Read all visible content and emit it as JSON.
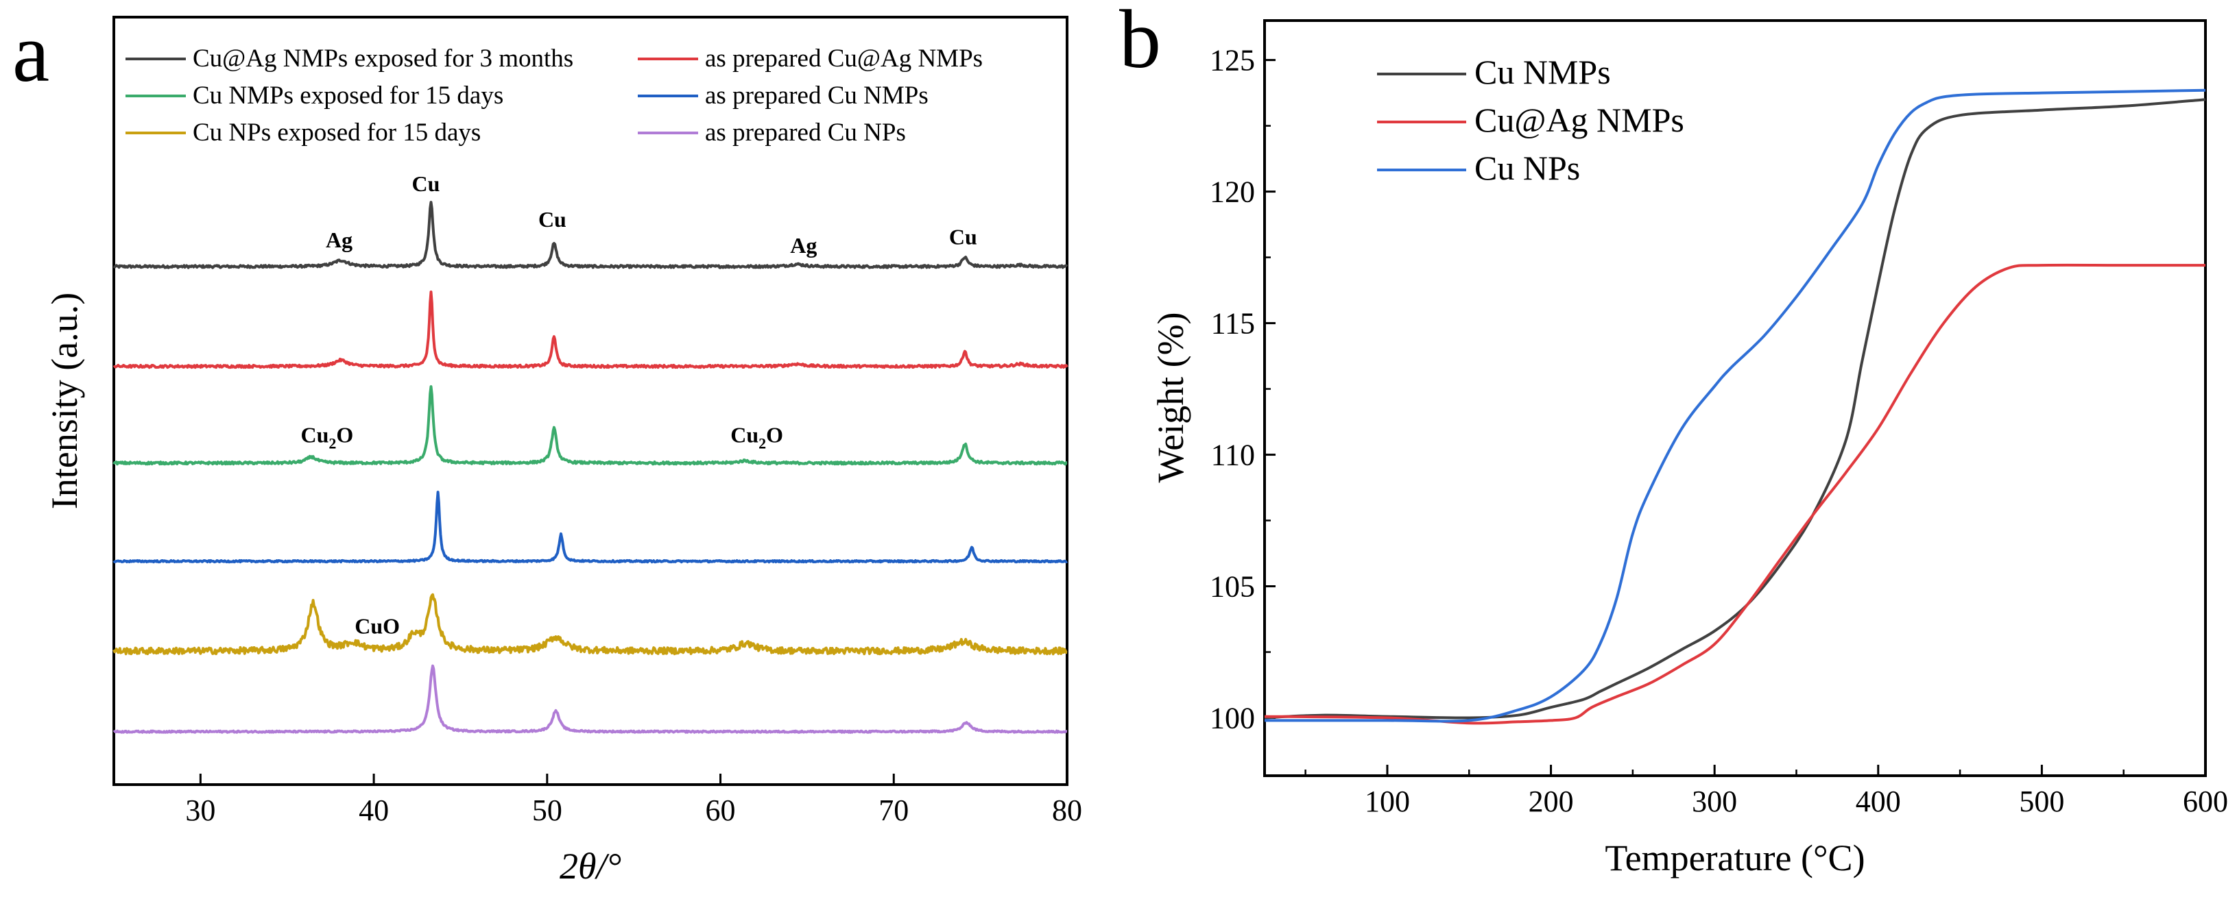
{
  "chart_data": [
    {
      "panel_label": "a",
      "type": "line",
      "xlabel": "2θ/°",
      "ylabel": "Intensity (a.u.)",
      "xlim": [
        25,
        80
      ],
      "xticks": [
        "30",
        "40",
        "50",
        "60",
        "70",
        "80"
      ],
      "xtick_values": [
        30,
        40,
        50,
        60,
        70,
        80
      ],
      "y_units": "stacked offset intensity (a.u.), 0 = bottom of plot, 1 = top",
      "legend": [
        {
          "label": "Cu@Ag NMPs exposed for 3 months",
          "color": "#404040"
        },
        {
          "label": "as prepared Cu@Ag NMPs",
          "color": "#e0393e"
        },
        {
          "label": "Cu NMPs exposed for 15 days",
          "color": "#3aab6b"
        },
        {
          "label": "as prepared Cu NMPs",
          "color": "#1f5fc4"
        },
        {
          "label": "Cu NPs exposed for 15 days",
          "color": "#c9a010"
        },
        {
          "label": "as prepared Cu NPs",
          "color": "#b07cd6"
        }
      ],
      "series": [
        {
          "name": "Cu@Ag NMPs exposed for 3 months",
          "color": "#404040",
          "baseline": 0.675,
          "noise": 0.0015,
          "peaks": [
            {
              "x": 38.1,
              "h": 0.008,
              "w": 0.5
            },
            {
              "x": 43.3,
              "h": 0.085,
              "w": 0.15
            },
            {
              "x": 50.4,
              "h": 0.03,
              "w": 0.18
            },
            {
              "x": 64.4,
              "h": 0.003,
              "w": 0.5
            },
            {
              "x": 74.1,
              "h": 0.012,
              "w": 0.2
            },
            {
              "x": 77.3,
              "h": 0.002,
              "w": 0.4
            }
          ]
        },
        {
          "name": "as prepared Cu@Ag NMPs",
          "color": "#e0393e",
          "baseline": 0.545,
          "noise": 0.0015,
          "peaks": [
            {
              "x": 38.1,
              "h": 0.008,
              "w": 0.45
            },
            {
              "x": 43.3,
              "h": 0.096,
              "w": 0.12
            },
            {
              "x": 50.4,
              "h": 0.04,
              "w": 0.14
            },
            {
              "x": 64.4,
              "h": 0.003,
              "w": 0.5
            },
            {
              "x": 74.1,
              "h": 0.02,
              "w": 0.15
            },
            {
              "x": 77.3,
              "h": 0.003,
              "w": 0.4
            }
          ]
        },
        {
          "name": "Cu NMPs exposed for 15 days",
          "color": "#3aab6b",
          "baseline": 0.419,
          "noise": 0.0015,
          "peaks": [
            {
              "x": 36.4,
              "h": 0.008,
              "w": 0.35
            },
            {
              "x": 43.3,
              "h": 0.1,
              "w": 0.15
            },
            {
              "x": 50.4,
              "h": 0.045,
              "w": 0.18
            },
            {
              "x": 61.4,
              "h": 0.003,
              "w": 0.4
            },
            {
              "x": 74.1,
              "h": 0.025,
              "w": 0.2
            }
          ]
        },
        {
          "name": "as prepared Cu NMPs",
          "color": "#1f5fc4",
          "baseline": 0.291,
          "noise": 0.001,
          "peaks": [
            {
              "x": 43.7,
              "h": 0.09,
              "w": 0.12
            },
            {
              "x": 50.8,
              "h": 0.035,
              "w": 0.14
            },
            {
              "x": 74.5,
              "h": 0.018,
              "w": 0.15
            }
          ]
        },
        {
          "name": "Cu NPs exposed for 15 days",
          "color": "#c9a010",
          "baseline": 0.174,
          "noise": 0.004,
          "peaks": [
            {
              "x": 36.5,
              "h": 0.062,
              "w": 0.35
            },
            {
              "x": 38.8,
              "h": 0.01,
              "w": 0.6
            },
            {
              "x": 42.3,
              "h": 0.018,
              "w": 0.4
            },
            {
              "x": 43.4,
              "h": 0.068,
              "w": 0.35
            },
            {
              "x": 50.5,
              "h": 0.018,
              "w": 0.6
            },
            {
              "x": 61.5,
              "h": 0.01,
              "w": 0.6
            },
            {
              "x": 74.0,
              "h": 0.012,
              "w": 0.7
            }
          ]
        },
        {
          "name": "as prepared Cu NPs",
          "color": "#b07cd6",
          "baseline": 0.069,
          "noise": 0.001,
          "peaks": [
            {
              "x": 43.4,
              "h": 0.085,
              "w": 0.22
            },
            {
              "x": 50.5,
              "h": 0.027,
              "w": 0.25
            },
            {
              "x": 74.2,
              "h": 0.012,
              "w": 0.3
            }
          ]
        }
      ],
      "annotations": [
        {
          "text": "Ag",
          "x": 38.0,
          "y": 0.7
        },
        {
          "text": "Cu",
          "x": 43.0,
          "y": 0.773
        },
        {
          "text": "Cu",
          "x": 50.3,
          "y": 0.727
        },
        {
          "text": "Ag",
          "x": 64.8,
          "y": 0.693
        },
        {
          "text": "Cu",
          "x": 74.0,
          "y": 0.704
        },
        {
          "text": "Cu2O",
          "x": 37.3,
          "y": 0.446,
          "formula": {
            "base": "Cu",
            "sub": "2",
            "tail": "O"
          }
        },
        {
          "text": "Cu2O",
          "x": 62.1,
          "y": 0.446,
          "formula": {
            "base": "Cu",
            "sub": "2",
            "tail": "O"
          }
        },
        {
          "text": "CuO",
          "x": 40.2,
          "y": 0.197
        }
      ]
    },
    {
      "panel_label": "b",
      "type": "line",
      "xlabel": "Temperature (°C)",
      "ylabel": "Weight (%)",
      "xlim": [
        25,
        600
      ],
      "ylim": [
        97.8,
        126.5
      ],
      "xticks": [
        "100",
        "200",
        "300",
        "400",
        "500",
        "600"
      ],
      "xtick_values": [
        100,
        200,
        300,
        400,
        500,
        600
      ],
      "yticks": [
        "100",
        "105",
        "110",
        "115",
        "120",
        "125"
      ],
      "ytick_values": [
        100,
        105,
        110,
        115,
        120,
        125
      ],
      "legend": [
        {
          "label": "Cu NMPs",
          "color": "#404040"
        },
        {
          "label": "Cu@Ag NMPs",
          "color": "#e0393e"
        },
        {
          "label": "Cu NPs",
          "color": "#2f6fd6"
        }
      ],
      "series": [
        {
          "name": "Cu NMPs",
          "color": "#404040",
          "x": [
            25,
            60,
            100,
            150,
            180,
            200,
            220,
            230,
            240,
            260,
            280,
            300,
            320,
            340,
            360,
            380,
            390,
            400,
            410,
            420,
            430,
            450,
            500,
            550,
            600
          ],
          "y": [
            100.0,
            100.1,
            100.05,
            100.0,
            100.1,
            100.4,
            100.7,
            101.0,
            101.3,
            101.9,
            102.6,
            103.3,
            104.3,
            105.8,
            107.7,
            110.5,
            113.5,
            116.5,
            119.3,
            121.4,
            122.4,
            122.9,
            123.1,
            123.25,
            123.5
          ]
        },
        {
          "name": "Cu@Ag NMPs",
          "color": "#e0393e",
          "x": [
            25,
            100,
            150,
            180,
            200,
            215,
            225,
            240,
            260,
            280,
            300,
            320,
            340,
            360,
            380,
            400,
            420,
            440,
            460,
            480,
            500,
            550,
            600
          ],
          "y": [
            100.05,
            100.0,
            99.8,
            99.85,
            99.9,
            100.0,
            100.4,
            100.8,
            101.3,
            102.0,
            102.8,
            104.3,
            106.0,
            107.7,
            109.3,
            111.0,
            113.1,
            115.0,
            116.4,
            117.1,
            117.2,
            117.2,
            117.2
          ]
        },
        {
          "name": "Cu NPs",
          "color": "#2f6fd6",
          "x": [
            25,
            100,
            150,
            180,
            200,
            220,
            230,
            240,
            250,
            260,
            280,
            300,
            310,
            330,
            350,
            370,
            390,
            400,
            410,
            420,
            430,
            440,
            460,
            500,
            550,
            600
          ],
          "y": [
            99.9,
            99.9,
            99.9,
            100.3,
            100.8,
            101.8,
            102.8,
            104.5,
            107.0,
            108.6,
            111.0,
            112.6,
            113.3,
            114.5,
            116.0,
            117.7,
            119.5,
            121.0,
            122.2,
            123.0,
            123.4,
            123.6,
            123.7,
            123.75,
            123.8,
            123.85
          ]
        }
      ]
    }
  ]
}
